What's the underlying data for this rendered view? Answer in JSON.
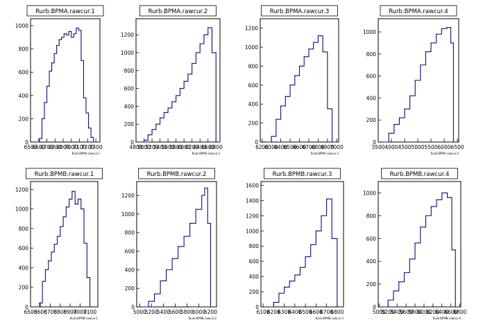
{
  "chart_data": [
    {
      "type": "bar",
      "title": "Rurb.BPMA.rawcur.1",
      "xlabel": "Rurb.BPMA.rawcur.1",
      "xticks": [
        "6500",
        "6600",
        "6700",
        "6800",
        "6900",
        "7000",
        "7100",
        "7200",
        "7300"
      ],
      "xlim": [
        6500,
        7350
      ],
      "yticks": [
        "0",
        "200",
        "400",
        "600",
        "800",
        "1000"
      ],
      "ylim": [
        0,
        1060
      ],
      "x": [
        6580,
        6610,
        6640,
        6670,
        6700,
        6730,
        6760,
        6790,
        6820,
        6850,
        6880,
        6910,
        6940,
        6970,
        7000,
        7030,
        7060,
        7090,
        7120,
        7150,
        7180,
        7210,
        7240,
        7270,
        7300
      ],
      "values": [
        0,
        30,
        200,
        340,
        480,
        610,
        680,
        760,
        830,
        880,
        900,
        930,
        920,
        950,
        900,
        930,
        980,
        960,
        700,
        380,
        250,
        120,
        40,
        0,
        0
      ]
    },
    {
      "type": "bar",
      "title": "Rurb.BPMA.rawcur.2",
      "xlabel": "Rurb.BPMA.rawcur.2",
      "xticks": [
        "4800",
        "5000",
        "5200",
        "5400",
        "5600",
        "5800",
        "6000",
        "6200",
        "6400",
        "6600",
        "6800"
      ],
      "xlim": [
        4800,
        6900
      ],
      "yticks": [
        "0",
        "200",
        "400",
        "600",
        "800",
        "1000",
        "1200"
      ],
      "ylim": [
        0,
        1380
      ],
      "x": [
        4900,
        5000,
        5100,
        5200,
        5300,
        5400,
        5500,
        5600,
        5700,
        5800,
        5900,
        6000,
        6100,
        6200,
        6300,
        6400,
        6500,
        6600,
        6700,
        6800
      ],
      "values": [
        0,
        20,
        80,
        140,
        200,
        270,
        330,
        380,
        450,
        520,
        600,
        680,
        760,
        880,
        1000,
        1100,
        1200,
        1280,
        1000,
        0
      ]
    },
    {
      "type": "bar",
      "title": "Rurb.BPMA.rawcur.3",
      "xlabel": "Rurb.BPMA.rawcur.3",
      "xticks": [
        "6200",
        "6300",
        "6400",
        "6500",
        "6600",
        "6700",
        "6800",
        "6900",
        "7000"
      ],
      "xlim": [
        6180,
        7020
      ],
      "yticks": [
        "0",
        "200",
        "400",
        "600",
        "800",
        "1000",
        "1200"
      ],
      "ylim": [
        0,
        1300
      ],
      "x": [
        6250,
        6300,
        6350,
        6400,
        6450,
        6500,
        6550,
        6600,
        6650,
        6700,
        6750,
        6800,
        6850,
        6900,
        6950
      ],
      "values": [
        0,
        60,
        240,
        380,
        480,
        600,
        700,
        800,
        900,
        980,
        1050,
        1120,
        950,
        350,
        0
      ]
    },
    {
      "type": "bar",
      "title": "Rurb.BPMA.rawcur.4",
      "xlabel": "Rurb.BPMA.rawcur.4",
      "xticks": [
        "3500",
        "4000",
        "4500",
        "5000",
        "5500",
        "6000",
        "6500"
      ],
      "xlim": [
        3500,
        6550
      ],
      "yticks": [
        "0",
        "200",
        "400",
        "600",
        "800",
        "1000"
      ],
      "ylim": [
        0,
        1120
      ],
      "x": [
        3700,
        3900,
        4100,
        4300,
        4500,
        4700,
        4900,
        5100,
        5300,
        5500,
        5700,
        5900,
        6100,
        6250,
        6350
      ],
      "values": [
        0,
        80,
        160,
        220,
        300,
        420,
        560,
        700,
        820,
        900,
        980,
        1030,
        1040,
        900,
        0
      ]
    },
    {
      "type": "bar",
      "title": "Rurb.BPMB.rawcur.1",
      "xlabel": "Rurb.BPMB.rawcur.1",
      "xticks": [
        "6500",
        "6600",
        "6700",
        "6800",
        "6900",
        "7000",
        "7100"
      ],
      "xlim": [
        6500,
        7180
      ],
      "yticks": [
        "0",
        "200",
        "400",
        "600",
        "800",
        "1000",
        "1200"
      ],
      "ylim": [
        0,
        1280
      ],
      "x": [
        6560,
        6590,
        6620,
        6650,
        6680,
        6710,
        6740,
        6770,
        6800,
        6830,
        6860,
        6890,
        6920,
        6950,
        6980,
        7010,
        7040,
        7070,
        7100
      ],
      "values": [
        0,
        40,
        260,
        380,
        470,
        560,
        640,
        720,
        820,
        920,
        1020,
        1100,
        1180,
        1050,
        1100,
        1000,
        650,
        300,
        0
      ]
    },
    {
      "type": "bar",
      "title": "Rurb.BPMB.rawcur.2",
      "xlabel": "Rurb.BPMB.rawcur.2",
      "xticks": [
        "5000",
        "5200",
        "5400",
        "5600",
        "5800",
        "6000",
        "6200"
      ],
      "xlim": [
        4950,
        6300
      ],
      "yticks": [
        "0",
        "200",
        "400",
        "600",
        "800",
        "1000",
        "1200"
      ],
      "ylim": [
        0,
        1350
      ],
      "x": [
        5050,
        5150,
        5250,
        5350,
        5450,
        5550,
        5650,
        5750,
        5850,
        5950,
        6050,
        6100,
        6150,
        6200
      ],
      "values": [
        0,
        60,
        140,
        280,
        400,
        520,
        650,
        760,
        900,
        1050,
        1200,
        1280,
        900,
        0
      ]
    },
    {
      "type": "bar",
      "title": "Rurb.BPMB.rawcur.3",
      "xlabel": "Rurb.BPMB.rawcur.3",
      "xticks": [
        "6100",
        "6200",
        "6300",
        "6400",
        "6500",
        "6600",
        "6700",
        "6800"
      ],
      "xlim": [
        6080,
        6860
      ],
      "yticks": [
        "0",
        "200",
        "400",
        "600",
        "800",
        "1000",
        "1200",
        "1400",
        "1600"
      ],
      "ylim": [
        0,
        1650
      ],
      "x": [
        6150,
        6200,
        6250,
        6300,
        6350,
        6400,
        6450,
        6500,
        6550,
        6600,
        6650,
        6700,
        6750,
        6800
      ],
      "values": [
        0,
        60,
        180,
        260,
        340,
        420,
        520,
        660,
        820,
        1000,
        1200,
        1420,
        900,
        0
      ]
    },
    {
      "type": "bar",
      "title": "Rurb.BPMB.rawcur.4",
      "xlabel": "Rurb.BPMB.rawcur.4",
      "xticks": [
        "5000",
        "5200",
        "5400",
        "5600",
        "5800",
        "6000",
        "6200",
        "6400",
        "6600",
        "6800"
      ],
      "xlim": [
        4980,
        6820
      ],
      "yticks": [
        "0",
        "200",
        "400",
        "600",
        "800",
        "1000"
      ],
      "ylim": [
        0,
        1100
      ],
      "x": [
        5080,
        5200,
        5320,
        5440,
        5560,
        5680,
        5800,
        5920,
        6040,
        6160,
        6280,
        6400,
        6520,
        6620,
        6700
      ],
      "values": [
        0,
        60,
        140,
        220,
        300,
        420,
        560,
        700,
        800,
        880,
        940,
        1000,
        960,
        500,
        0
      ]
    }
  ]
}
